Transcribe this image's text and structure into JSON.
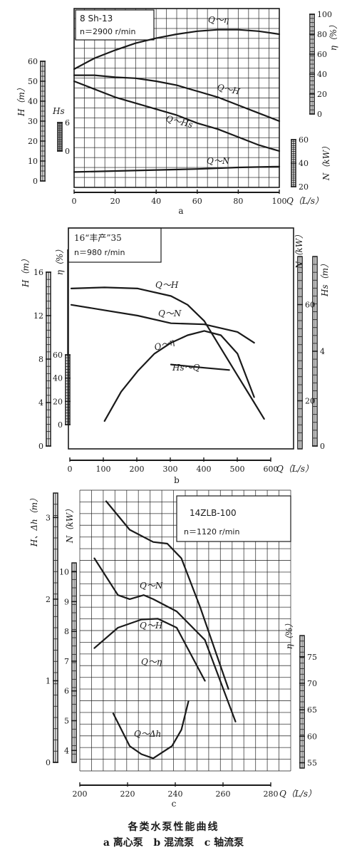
{
  "figure": {
    "caption_title": "各类水泵性能曲线",
    "caption_sub": "a 离心泵   b 混流泵   c 轴流泵",
    "ink_color": "#1a1a1a"
  },
  "chart_data": [
    {
      "panel": "a",
      "type": "line",
      "title": "8 Sh-13",
      "subtitle": "n＝2900 r/min",
      "x_label": "Q（L/s）",
      "x_range": [
        0,
        100
      ],
      "x_ticks": [
        0,
        20,
        40,
        60,
        80,
        100
      ],
      "axes": [
        {
          "id": "H",
          "label": "H（m）",
          "range": [
            0,
            60
          ],
          "ticks": [
            0,
            10,
            20,
            30,
            40,
            50,
            60
          ],
          "side": "left"
        },
        {
          "id": "Hs",
          "label": "Hs",
          "range": [
            0,
            6
          ],
          "ticks": [
            0,
            6
          ],
          "side": "left"
        },
        {
          "id": "eta",
          "label": "η（%）",
          "range": [
            0,
            100
          ],
          "ticks": [
            0,
            20,
            40,
            60,
            80,
            100
          ],
          "side": "right"
        },
        {
          "id": "N",
          "label": "N（kW）",
          "range": [
            20,
            60
          ],
          "ticks": [
            20,
            40,
            60
          ],
          "side": "right"
        }
      ],
      "series": [
        {
          "name": "Q～η",
          "axis": "eta",
          "x": [
            0,
            10,
            20,
            30,
            40,
            50,
            60,
            70,
            80,
            90,
            100
          ],
          "y": [
            45,
            56,
            64,
            71,
            76,
            80,
            83,
            84.5,
            84.5,
            83,
            80
          ]
        },
        {
          "name": "Q～H",
          "axis": "H",
          "x": [
            0,
            10,
            20,
            30,
            40,
            50,
            60,
            70,
            80,
            90,
            100
          ],
          "y": [
            53,
            53,
            52,
            51.5,
            50,
            48,
            45,
            42,
            38,
            34,
            30
          ]
        },
        {
          "name": "Q～Hs",
          "axis": "H",
          "x": [
            0,
            20,
            40,
            50,
            60,
            70,
            80,
            90,
            100
          ],
          "y": [
            50,
            42,
            36,
            33,
            29,
            26,
            22,
            18,
            15
          ]
        },
        {
          "name": "Q～N",
          "axis": "H",
          "x": [
            0,
            20,
            40,
            60,
            80,
            100
          ],
          "y": [
            4.5,
            5,
            5.5,
            6,
            6.8,
            7.2
          ]
        }
      ]
    },
    {
      "panel": "b",
      "type": "line",
      "title": "16“丰产”35",
      "subtitle": "n＝980 r/min",
      "x_label": "Q（L/s）",
      "x_range": [
        0,
        600
      ],
      "x_ticks": [
        0,
        100,
        200,
        300,
        400,
        500,
        600
      ],
      "axes": [
        {
          "id": "H",
          "label": "H（m）",
          "range": [
            0,
            16
          ],
          "ticks": [
            0,
            4,
            8,
            12,
            16
          ],
          "side": "left"
        },
        {
          "id": "eta",
          "label": "η（%）",
          "range": [
            0,
            60
          ],
          "ticks": [
            0,
            20,
            40,
            60
          ],
          "side": "left"
        },
        {
          "id": "N",
          "label": "N（kW）",
          "range": [
            0,
            80
          ],
          "ticks": [
            20,
            60
          ],
          "side": "right"
        },
        {
          "id": "Hs",
          "label": "Hs（m）",
          "range": [
            0,
            8
          ],
          "ticks": [
            0,
            4
          ],
          "side": "right"
        }
      ],
      "series": [
        {
          "name": "Q～H",
          "axis": "H",
          "x": [
            0,
            100,
            200,
            300,
            350,
            400,
            450,
            500,
            550,
            580
          ],
          "y": [
            14.5,
            14.6,
            14.5,
            13.8,
            13,
            11.5,
            9,
            6.5,
            4,
            2.5
          ]
        },
        {
          "name": "Q～N",
          "axis": "H",
          "x": [
            0,
            100,
            200,
            300,
            400,
            500,
            550
          ],
          "y": [
            13,
            12.5,
            12,
            11.3,
            11.2,
            10.5,
            9.5
          ]
        },
        {
          "name": "Q～η",
          "axis": "H",
          "x": [
            100,
            150,
            200,
            250,
            300,
            350,
            400,
            450,
            500,
            550
          ],
          "y": [
            2.3,
            5,
            6.9,
            8.5,
            9.5,
            10.2,
            10.6,
            10.2,
            8.5,
            4.5
          ]
        },
        {
          "name": "Hs～Q",
          "axis": "H",
          "x": [
            300,
            400,
            475
          ],
          "y": [
            7.5,
            7.2,
            7
          ]
        }
      ]
    },
    {
      "panel": "c",
      "type": "line",
      "title": "14ZLB-100",
      "subtitle": "n＝1120 r/min",
      "x_label": "Q（L/s）",
      "x_range": [
        200,
        280
      ],
      "x_ticks": [
        200,
        220,
        240,
        260,
        280
      ],
      "axes": [
        {
          "id": "H",
          "label": "H、Δh（m）",
          "range": [
            0,
            3
          ],
          "ticks": [
            0,
            1,
            2,
            3
          ],
          "side": "left"
        },
        {
          "id": "N",
          "label": "N（kW）",
          "range": [
            4,
            10
          ],
          "ticks": [
            4,
            5,
            6,
            7,
            8,
            9,
            10
          ],
          "side": "left"
        },
        {
          "id": "eta",
          "label": "η（%）",
          "range": [
            55,
            75
          ],
          "ticks": [
            55,
            60,
            65,
            70,
            75
          ],
          "side": "right"
        }
      ],
      "series": [
        {
          "name": "Q～N",
          "axis": "H",
          "x": [
            210,
            220,
            230,
            236,
            242,
            250,
            262
          ],
          "y": [
            3.2,
            2.85,
            2.7,
            2.68,
            2.5,
            1.9,
            0.9
          ]
        },
        {
          "name": "Q～H",
          "axis": "H",
          "x": [
            205,
            215,
            220,
            226,
            230,
            240,
            252,
            265
          ],
          "y": [
            2.5,
            2.05,
            2.0,
            2.05,
            2.0,
            1.85,
            1.5,
            0.5
          ]
        },
        {
          "name": "Q～η",
          "axis": "H",
          "x": [
            205,
            215,
            225,
            232,
            240,
            252
          ],
          "y": [
            1.4,
            1.65,
            1.75,
            1.76,
            1.65,
            1.0
          ]
        },
        {
          "name": "Q～Δh",
          "axis": "H",
          "x": [
            213,
            220,
            225,
            230,
            238,
            242,
            245
          ],
          "y": [
            0.6,
            0.2,
            0.1,
            0.05,
            0.2,
            0.4,
            0.75
          ]
        }
      ]
    }
  ]
}
